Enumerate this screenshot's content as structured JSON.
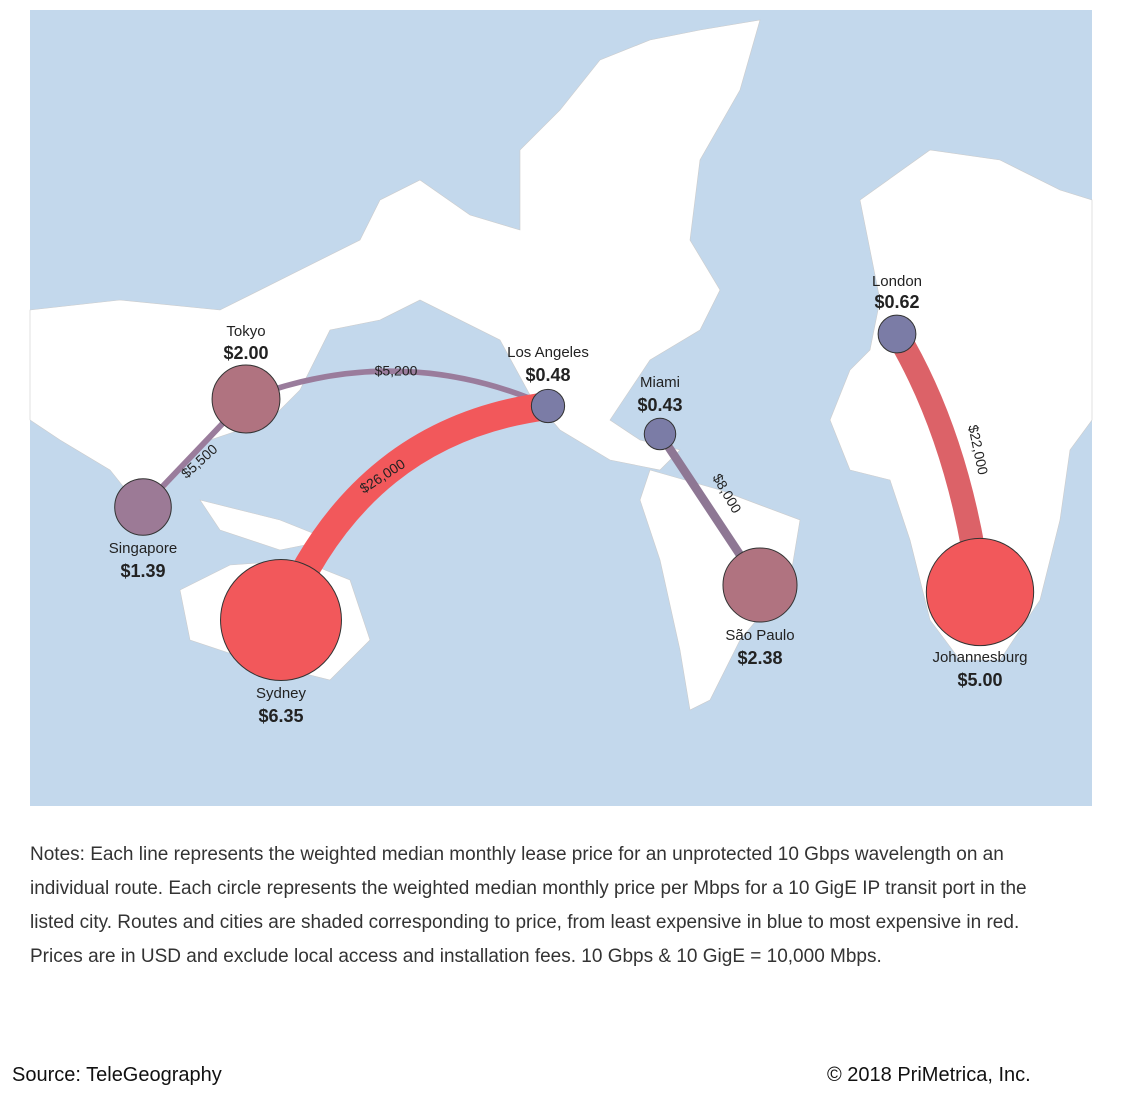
{
  "cities": [
    {
      "name": "Tokyo",
      "price": 2.0,
      "price_label": "$2.00",
      "color": "#b07380"
    },
    {
      "name": "Singapore",
      "price": 1.39,
      "price_label": "$1.39",
      "color": "#9c7a96"
    },
    {
      "name": "Sydney",
      "price": 6.35,
      "price_label": "$6.35",
      "color": "#f2585b"
    },
    {
      "name": "Los Angeles",
      "price": 0.48,
      "price_label": "$0.48",
      "color": "#7b7ca6"
    },
    {
      "name": "Miami",
      "price": 0.43,
      "price_label": "$0.43",
      "color": "#7b7ca6"
    },
    {
      "name": "São Paulo",
      "price": 2.38,
      "price_label": "$2.38",
      "color": "#b07380"
    },
    {
      "name": "London",
      "price": 0.62,
      "price_label": "$0.62",
      "color": "#7b7ca6"
    },
    {
      "name": "Johannesburg",
      "price": 5.0,
      "price_label": "$5.00",
      "color": "#f2585b"
    }
  ],
  "routes": [
    {
      "price": 5200,
      "label": "$5,200",
      "color": "#9a7c9c"
    },
    {
      "price": 5500,
      "label": "$5,500",
      "color": "#9a7c9c"
    },
    {
      "price": 26000,
      "label": "$26,000",
      "color": "#f2585b"
    },
    {
      "price": 8000,
      "label": "$8,000",
      "color": "#8e7794"
    },
    {
      "price": 22000,
      "label": "$22,000",
      "color": "#dc6268"
    }
  ],
  "notes": "Notes: Each line represents the weighted median monthly lease price for an unprotected 10 Gbps wavelength on an individual route. Each circle represents the weighted median monthly price per Mbps for a 10 GigE IP transit port in the listed city. Routes and cities are shaded corresponding to price, from least expensive in blue to most expensive in red. Prices are in USD and exclude local access and installation fees. 10 Gbps & 10 GigE = 10,000 Mbps.",
  "source": "Source: TeleGeography",
  "copyright": "© 2018 PriMetrica, Inc."
}
